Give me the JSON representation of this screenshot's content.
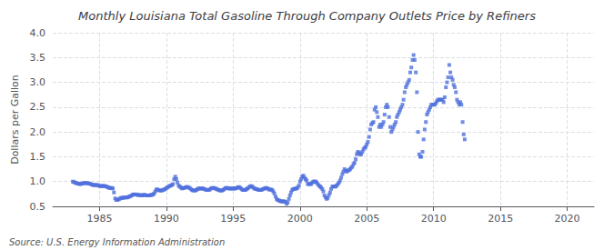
{
  "chart_data": {
    "type": "scatter",
    "title": "Monthly Louisiana Total Gasoline Through Company Outlets Price by Refiners",
    "ylabel": "Dollars per Gallon",
    "annotation": "Source: U.S. Energy Information Administration",
    "marker": "square",
    "grid": true,
    "xlim": [
      1981.5,
      2022
    ],
    "xticks": [
      1985,
      1990,
      1995,
      2000,
      2005,
      2010,
      2015,
      2020
    ],
    "ylim": [
      0.5,
      4.0
    ],
    "yticks": [
      0.5,
      {
        "value": 1.0,
        "label": "1.0"
      },
      1.5,
      {
        "value": 2.0,
        "label": "2.0"
      },
      2.5,
      {
        "value": 3.0,
        "label": "3.0"
      },
      3.5,
      {
        "value": 4.0,
        "label": "4.0"
      }
    ],
    "x": [
      1983.0,
      1983.08,
      1983.17,
      1983.25,
      1983.33,
      1983.42,
      1983.5,
      1983.58,
      1983.67,
      1983.75,
      1983.83,
      1983.92,
      1984.0,
      1984.08,
      1984.17,
      1984.25,
      1984.33,
      1984.42,
      1984.5,
      1984.58,
      1984.67,
      1984.75,
      1984.83,
      1984.92,
      1985.0,
      1985.08,
      1985.17,
      1985.25,
      1985.33,
      1985.42,
      1985.5,
      1985.58,
      1985.67,
      1985.75,
      1985.83,
      1985.92,
      1986.0,
      1986.08,
      1986.17,
      1986.25,
      1986.33,
      1986.42,
      1986.5,
      1986.58,
      1986.67,
      1986.75,
      1986.83,
      1986.92,
      1987.0,
      1987.08,
      1987.17,
      1987.25,
      1987.33,
      1987.42,
      1987.5,
      1987.58,
      1987.67,
      1987.75,
      1987.83,
      1987.92,
      1988.0,
      1988.08,
      1988.17,
      1988.25,
      1988.33,
      1988.42,
      1988.5,
      1988.58,
      1988.67,
      1988.75,
      1988.83,
      1988.92,
      1989.0,
      1989.08,
      1989.17,
      1989.25,
      1989.33,
      1989.42,
      1989.5,
      1989.58,
      1989.67,
      1989.75,
      1989.83,
      1989.92,
      1990.0,
      1990.08,
      1990.17,
      1990.25,
      1990.33,
      1990.42,
      1990.5,
      1990.58,
      1990.67,
      1990.75,
      1990.83,
      1990.92,
      1991.0,
      1991.08,
      1991.17,
      1991.25,
      1991.33,
      1991.42,
      1991.5,
      1991.58,
      1991.67,
      1991.75,
      1991.83,
      1991.92,
      1992.0,
      1992.08,
      1992.17,
      1992.25,
      1992.33,
      1992.42,
      1992.5,
      1992.58,
      1992.67,
      1992.75,
      1992.83,
      1992.92,
      1993.0,
      1993.08,
      1993.17,
      1993.25,
      1993.33,
      1993.42,
      1993.5,
      1993.58,
      1993.67,
      1993.75,
      1993.83,
      1993.92,
      1994.0,
      1994.08,
      1994.17,
      1994.25,
      1994.33,
      1994.42,
      1994.5,
      1994.58,
      1994.67,
      1994.75,
      1994.83,
      1994.92,
      1995.0,
      1995.08,
      1995.17,
      1995.25,
      1995.33,
      1995.42,
      1995.5,
      1995.58,
      1995.67,
      1995.75,
      1995.83,
      1995.92,
      1996.0,
      1996.08,
      1996.17,
      1996.25,
      1996.33,
      1996.42,
      1996.5,
      1996.58,
      1996.67,
      1996.75,
      1996.83,
      1996.92,
      1997.0,
      1997.08,
      1997.17,
      1997.25,
      1997.33,
      1997.42,
      1997.5,
      1997.58,
      1997.67,
      1997.75,
      1997.83,
      1997.92,
      1998.0,
      1998.08,
      1998.17,
      1998.25,
      1998.33,
      1998.42,
      1998.5,
      1998.58,
      1998.67,
      1998.75,
      1998.83,
      1998.92,
      1999.0,
      1999.08,
      1999.17,
      1999.25,
      1999.33,
      1999.42,
      1999.5,
      1999.58,
      1999.67,
      1999.75,
      1999.83,
      1999.92,
      2000.0,
      2000.08,
      2000.17,
      2000.25,
      2000.33,
      2000.42,
      2000.5,
      2000.58,
      2000.67,
      2000.75,
      2000.83,
      2000.92,
      2001.0,
      2001.08,
      2001.17,
      2001.25,
      2001.33,
      2001.42,
      2001.5,
      2001.58,
      2001.67,
      2001.75,
      2001.83,
      2001.92,
      2002.0,
      2002.08,
      2002.17,
      2002.25,
      2002.33,
      2002.42,
      2002.5,
      2002.58,
      2002.67,
      2002.75,
      2002.83,
      2002.92,
      2003.0,
      2003.08,
      2003.17,
      2003.25,
      2003.33,
      2003.42,
      2003.5,
      2003.58,
      2003.67,
      2003.75,
      2003.83,
      2003.92,
      2004.0,
      2004.08,
      2004.17,
      2004.25,
      2004.33,
      2004.42,
      2004.5,
      2004.58,
      2004.67,
      2004.75,
      2004.83,
      2004.92,
      2005.0,
      2005.08,
      2005.17,
      2005.25,
      2005.33,
      2005.42,
      2005.5,
      2005.58,
      2005.67,
      2005.75,
      2005.83,
      2005.92,
      2006.0,
      2006.08,
      2006.17,
      2006.25,
      2006.33,
      2006.42,
      2006.5,
      2006.58,
      2006.67,
      2006.75,
      2006.83,
      2006.92,
      2007.0,
      2007.08,
      2007.17,
      2007.25,
      2007.33,
      2007.42,
      2007.5,
      2007.58,
      2007.67,
      2007.75,
      2007.83,
      2007.92,
      2008.0,
      2008.08,
      2008.17,
      2008.25,
      2008.33,
      2008.42,
      2008.5,
      2008.58,
      2008.67,
      2008.75,
      2008.83,
      2008.92,
      2009.0,
      2009.08,
      2009.17,
      2009.25,
      2009.33,
      2009.42,
      2009.5,
      2009.58,
      2009.67,
      2009.75,
      2009.83,
      2009.92,
      2010.0,
      2010.08,
      2010.17,
      2010.25,
      2010.33,
      2010.42,
      2010.5,
      2010.58,
      2010.67,
      2010.75,
      2010.83,
      2010.92,
      2011.0,
      2011.08,
      2011.17,
      2011.25,
      2011.33,
      2011.42,
      2011.5,
      2011.58,
      2011.67,
      2011.75,
      2011.83,
      2011.92,
      2012.0,
      2012.08,
      2012.17,
      2012.25,
      2012.33
    ],
    "values": [
      1.0,
      0.99,
      0.98,
      0.97,
      0.96,
      0.96,
      0.95,
      0.95,
      0.96,
      0.96,
      0.97,
      0.97,
      0.97,
      0.97,
      0.96,
      0.96,
      0.95,
      0.94,
      0.93,
      0.93,
      0.93,
      0.93,
      0.93,
      0.92,
      0.91,
      0.91,
      0.91,
      0.91,
      0.91,
      0.91,
      0.9,
      0.89,
      0.88,
      0.87,
      0.87,
      0.87,
      0.86,
      0.78,
      0.66,
      0.63,
      0.63,
      0.64,
      0.65,
      0.67,
      0.67,
      0.67,
      0.68,
      0.68,
      0.68,
      0.68,
      0.69,
      0.7,
      0.71,
      0.72,
      0.74,
      0.74,
      0.74,
      0.74,
      0.73,
      0.73,
      0.73,
      0.72,
      0.72,
      0.73,
      0.73,
      0.73,
      0.72,
      0.72,
      0.72,
      0.72,
      0.73,
      0.73,
      0.74,
      0.76,
      0.8,
      0.84,
      0.84,
      0.83,
      0.82,
      0.82,
      0.82,
      0.83,
      0.84,
      0.85,
      0.87,
      0.88,
      0.9,
      0.91,
      0.92,
      0.93,
      0.95,
      1.05,
      1.1,
      1.05,
      0.98,
      0.92,
      0.9,
      0.88,
      0.86,
      0.87,
      0.87,
      0.88,
      0.89,
      0.89,
      0.88,
      0.87,
      0.85,
      0.83,
      0.82,
      0.82,
      0.82,
      0.83,
      0.85,
      0.86,
      0.86,
      0.86,
      0.86,
      0.86,
      0.85,
      0.84,
      0.83,
      0.83,
      0.83,
      0.84,
      0.86,
      0.87,
      0.87,
      0.87,
      0.86,
      0.85,
      0.84,
      0.83,
      0.82,
      0.82,
      0.82,
      0.83,
      0.85,
      0.87,
      0.87,
      0.87,
      0.86,
      0.86,
      0.86,
      0.86,
      0.86,
      0.86,
      0.86,
      0.87,
      0.88,
      0.89,
      0.88,
      0.86,
      0.84,
      0.83,
      0.83,
      0.83,
      0.85,
      0.86,
      0.88,
      0.9,
      0.91,
      0.9,
      0.88,
      0.86,
      0.85,
      0.85,
      0.84,
      0.83,
      0.83,
      0.83,
      0.84,
      0.85,
      0.86,
      0.87,
      0.87,
      0.86,
      0.84,
      0.84,
      0.84,
      0.83,
      0.8,
      0.76,
      0.7,
      0.65,
      0.63,
      0.62,
      0.61,
      0.6,
      0.6,
      0.6,
      0.6,
      0.59,
      0.55,
      0.58,
      0.65,
      0.72,
      0.78,
      0.83,
      0.85,
      0.85,
      0.86,
      0.86,
      0.88,
      0.92,
      1.0,
      1.05,
      1.1,
      1.12,
      1.08,
      1.05,
      1.02,
      0.95,
      0.95,
      0.95,
      0.95,
      0.98,
      1.0,
      1.0,
      1.0,
      0.98,
      0.95,
      0.92,
      0.9,
      0.88,
      0.85,
      0.8,
      0.72,
      0.68,
      0.65,
      0.67,
      0.73,
      0.78,
      0.85,
      0.9,
      0.9,
      0.9,
      0.9,
      0.92,
      0.95,
      0.98,
      1.02,
      1.08,
      1.15,
      1.2,
      1.25,
      1.22,
      1.2,
      1.22,
      1.23,
      1.25,
      1.28,
      1.3,
      1.35,
      1.38,
      1.45,
      1.55,
      1.6,
      1.58,
      1.55,
      1.55,
      1.6,
      1.65,
      1.68,
      1.7,
      1.75,
      1.8,
      1.9,
      2.05,
      2.15,
      2.18,
      2.2,
      2.45,
      2.5,
      2.4,
      2.3,
      2.1,
      2.15,
      2.1,
      2.15,
      2.2,
      2.35,
      2.5,
      2.55,
      2.5,
      2.3,
      2.1,
      2.0,
      2.05,
      2.1,
      2.15,
      2.2,
      2.3,
      2.35,
      2.4,
      2.45,
      2.5,
      2.55,
      2.65,
      2.8,
      2.9,
      2.95,
      3.0,
      3.05,
      3.2,
      3.3,
      3.45,
      3.55,
      3.45,
      3.2,
      2.8,
      2.0,
      1.55,
      1.5,
      1.5,
      1.6,
      1.85,
      2.05,
      2.2,
      2.35,
      2.4,
      2.45,
      2.5,
      2.55,
      2.55,
      2.55,
      2.55,
      2.58,
      2.62,
      2.65,
      2.65,
      2.65,
      2.65,
      2.65,
      2.6,
      2.7,
      2.9,
      3.0,
      3.1,
      3.35,
      3.2,
      3.1,
      3.05,
      2.95,
      2.9,
      2.8,
      2.65,
      2.6,
      2.55,
      2.6,
      2.55,
      2.2,
      1.95,
      1.85
    ]
  }
}
